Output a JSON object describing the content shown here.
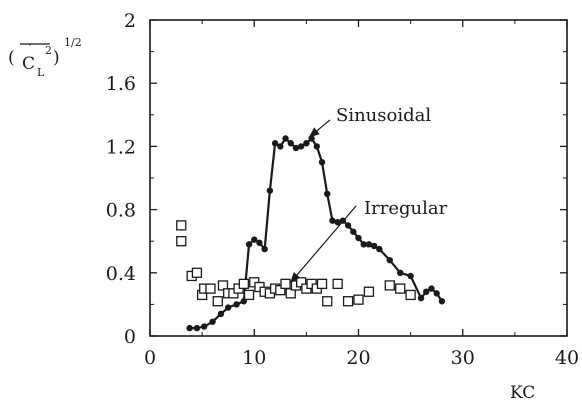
{
  "chart_data": {
    "type": "scatter",
    "xlabel": "KC",
    "ylabel_parts": {
      "lparen": "(",
      "c": "C",
      "prime": "′",
      "sub": "L",
      "sup": "2",
      "rparen": ")",
      "exp": "1/2"
    },
    "xlim": [
      0,
      40
    ],
    "ylim": [
      0,
      2
    ],
    "xticks": [
      0,
      10,
      20,
      30,
      40
    ],
    "yticks": [
      0,
      0.4,
      0.8,
      1.2,
      1.6,
      2
    ],
    "xtick_labels": [
      "0",
      "10",
      "20",
      "30",
      "40"
    ],
    "ytick_labels": [
      "0",
      "0.4",
      "0.8",
      "1.2",
      "1.6",
      "2"
    ],
    "series": [
      {
        "name": "Sinusoidal",
        "marker": "filled-circle",
        "line": true,
        "x": [
          3.8,
          4.5,
          5.2,
          6.0,
          6.8,
          7.5,
          8.3,
          9.0,
          9.5,
          10.0,
          10.5,
          11.0,
          11.5,
          12.0,
          12.5,
          13.0,
          13.5,
          14.0,
          14.5,
          15.0,
          15.5,
          16.0,
          16.5,
          17.0,
          17.5,
          18.0,
          18.5,
          19.0,
          19.5,
          20.0,
          20.5,
          21.0,
          21.5,
          22.0,
          23.0,
          24.0,
          25.0,
          26.0,
          26.5,
          27.0,
          27.5,
          28.0
        ],
        "y": [
          0.05,
          0.05,
          0.06,
          0.09,
          0.14,
          0.18,
          0.2,
          0.22,
          0.58,
          0.61,
          0.59,
          0.55,
          0.92,
          1.22,
          1.2,
          1.25,
          1.22,
          1.19,
          1.2,
          1.22,
          1.25,
          1.2,
          1.1,
          0.9,
          0.73,
          0.72,
          0.73,
          0.7,
          0.66,
          0.62,
          0.58,
          0.58,
          0.57,
          0.55,
          0.48,
          0.4,
          0.38,
          0.24,
          0.28,
          0.3,
          0.27,
          0.22
        ]
      },
      {
        "name": "Irregular",
        "marker": "open-square",
        "line": false,
        "x": [
          3.0,
          3.0,
          4.0,
          4.5,
          5.0,
          5.2,
          5.8,
          6.5,
          7.0,
          7.5,
          8.0,
          8.5,
          9.0,
          9.5,
          10.0,
          10.5,
          11.0,
          11.5,
          12.0,
          12.5,
          13.0,
          13.5,
          14.0,
          14.5,
          15.0,
          15.5,
          16.0,
          16.5,
          17.0,
          18.0,
          19.0,
          20.0,
          21.0,
          23.0,
          24.0,
          25.0
        ],
        "y": [
          0.7,
          0.6,
          0.38,
          0.4,
          0.26,
          0.3,
          0.3,
          0.22,
          0.32,
          0.27,
          0.27,
          0.3,
          0.33,
          0.26,
          0.34,
          0.31,
          0.28,
          0.27,
          0.3,
          0.29,
          0.33,
          0.27,
          0.32,
          0.34,
          0.3,
          0.33,
          0.3,
          0.33,
          0.22,
          0.33,
          0.22,
          0.23,
          0.28,
          0.32,
          0.3,
          0.26
        ]
      }
    ],
    "annotations": [
      {
        "text": "Sinusoidal",
        "points_to": "Sinusoidal",
        "tip": [
          15.3,
          1.26
        ]
      },
      {
        "text": "Irregular",
        "points_to": "Irregular",
        "tip": [
          13.5,
          0.34
        ]
      }
    ],
    "grid": false,
    "legend": "none"
  }
}
